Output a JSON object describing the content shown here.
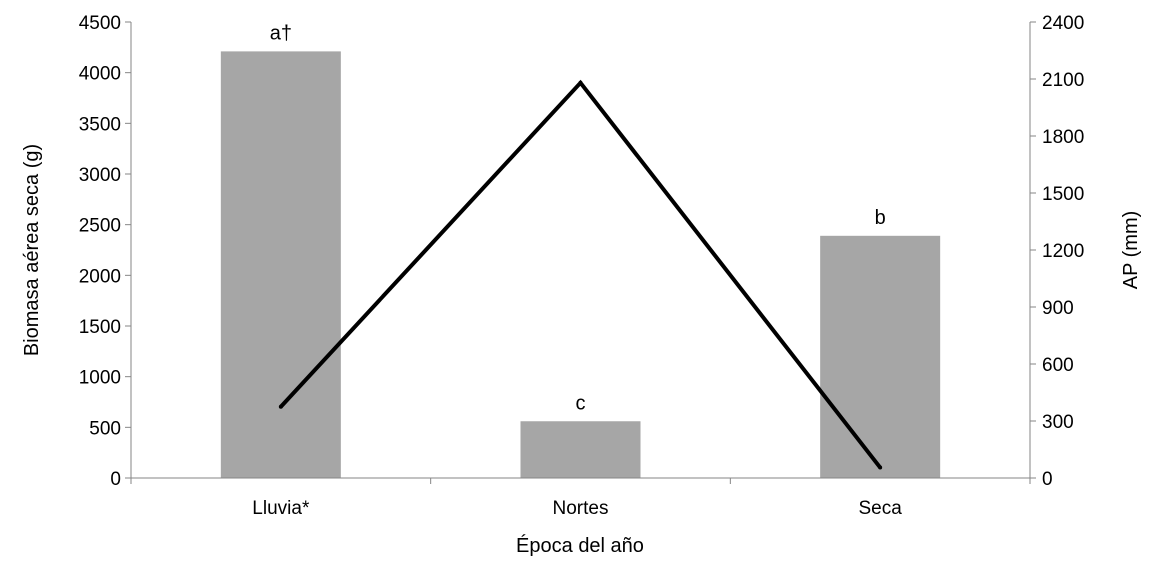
{
  "chart_data": {
    "type": "bar",
    "categories": [
      "Lluvia*",
      "Nortes",
      "Seca"
    ],
    "xlabel": "Época del año",
    "ylabel": "Biomasa aérea seca (g)",
    "y2label": "AP (mm)",
    "ylim": [
      0,
      4500
    ],
    "y2lim": [
      0,
      2400
    ],
    "yticks": [
      "0",
      "500",
      "1000",
      "1500",
      "2000",
      "2500",
      "3000",
      "3500",
      "4000",
      "4500"
    ],
    "y2ticks": [
      "0",
      "300",
      "600",
      "900",
      "1200",
      "1500",
      "1800",
      "2100",
      "2400"
    ],
    "grid": false,
    "series": [
      {
        "kind": "bar",
        "axis": "left",
        "color": "#a6a6a6",
        "values": [
          4210,
          560,
          2390
        ],
        "labels": [
          "a†",
          "c",
          "b"
        ]
      },
      {
        "kind": "line",
        "axis": "right",
        "color": "#000000",
        "values": [
          375,
          2080,
          55
        ]
      }
    ]
  }
}
